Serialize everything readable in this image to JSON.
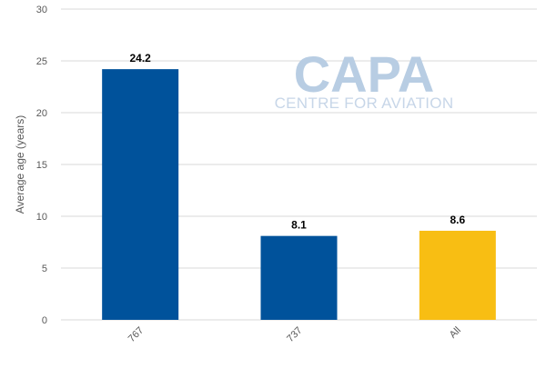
{
  "chart_data": {
    "type": "bar",
    "categories": [
      "767",
      "737",
      "All"
    ],
    "values": [
      24.2,
      8.1,
      8.6
    ],
    "data_labels": [
      "24.2",
      "8.1",
      "8.6"
    ],
    "bar_colors": [
      "#00529b",
      "#00529b",
      "#f8be13"
    ],
    "ylabel": "Average age (years)",
    "xlabel": "",
    "ylim": [
      0,
      30
    ],
    "yticks": [
      "0",
      "5",
      "10",
      "15",
      "20",
      "25",
      "30"
    ],
    "grid": true,
    "legend": "none"
  },
  "watermark": {
    "title": "CAPA",
    "subtitle": "CENTRE FOR AVIATION"
  },
  "colors": {
    "grid": "#d9d9d9",
    "axis_text": "#595959",
    "label_text": "#000000"
  }
}
